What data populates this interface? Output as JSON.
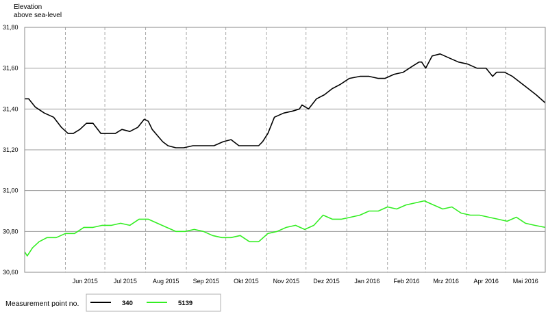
{
  "chart_data": {
    "type": "line",
    "ylabel_lines": [
      "Elevation",
      "above sea-level"
    ],
    "y_ticks": [
      "31,80",
      "31,60",
      "31,40",
      "31,20",
      "31,00",
      "30,80",
      "30,60"
    ],
    "y_tick_values": [
      31.8,
      31.6,
      31.4,
      31.2,
      31.0,
      30.8,
      30.6
    ],
    "ylim": [
      30.6,
      31.8
    ],
    "grid": true,
    "x_start": "2015-05-01",
    "x_end": "2016-05-31",
    "x_month_starts": [
      "2015-05-01",
      "2015-06-01",
      "2015-07-01",
      "2015-08-01",
      "2015-09-01",
      "2015-10-01",
      "2015-11-01",
      "2015-12-01",
      "2016-01-01",
      "2016-02-01",
      "2016-03-01",
      "2016-04-01",
      "2016-05-01"
    ],
    "x_tick_labels": [
      "Jun 2015",
      "Jul 2015",
      "Aug 2015",
      "Sep 2015",
      "Okt 2015",
      "Nov 2015",
      "Dez 2015",
      "Jan 2016",
      "Feb 2016",
      "Mrz 2016",
      "Apr 2016",
      "Mai 2016"
    ],
    "legend": {
      "title": "Measurement point no.",
      "position": "bottom-left"
    },
    "series": [
      {
        "name": "340",
        "color": "#000000",
        "x": [
          "2015-05-01",
          "2015-05-04",
          "2015-05-09",
          "2015-05-16",
          "2015-05-23",
          "2015-05-29",
          "2015-06-03",
          "2015-06-07",
          "2015-06-12",
          "2015-06-17",
          "2015-06-22",
          "2015-06-28",
          "2015-07-04",
          "2015-07-09",
          "2015-07-14",
          "2015-07-20",
          "2015-07-26",
          "2015-07-31",
          "2015-08-03",
          "2015-08-06",
          "2015-08-10",
          "2015-08-14",
          "2015-08-18",
          "2015-08-24",
          "2015-08-30",
          "2015-09-06",
          "2015-09-14",
          "2015-09-22",
          "2015-09-29",
          "2015-10-05",
          "2015-10-11",
          "2015-10-18",
          "2015-10-22",
          "2015-10-26",
          "2015-10-29",
          "2015-11-02",
          "2015-11-07",
          "2015-11-14",
          "2015-11-21",
          "2015-11-26",
          "2015-11-28",
          "2015-12-03",
          "2015-12-09",
          "2015-12-15",
          "2015-12-21",
          "2015-12-27",
          "2016-01-03",
          "2016-01-11",
          "2016-01-18",
          "2016-01-25",
          "2016-01-30",
          "2016-02-06",
          "2016-02-13",
          "2016-02-20",
          "2016-02-25",
          "2016-02-27",
          "2016-03-01",
          "2016-03-06",
          "2016-03-12",
          "2016-03-19",
          "2016-03-26",
          "2016-04-02",
          "2016-04-09",
          "2016-04-16",
          "2016-04-21",
          "2016-04-24",
          "2016-04-30",
          "2016-05-06",
          "2016-05-12",
          "2016-05-18",
          "2016-05-24",
          "2016-05-31"
        ],
        "y": [
          31.45,
          31.45,
          31.41,
          31.38,
          31.36,
          31.31,
          31.28,
          31.28,
          31.3,
          31.33,
          31.33,
          31.28,
          31.28,
          31.28,
          31.3,
          31.29,
          31.31,
          31.35,
          31.34,
          31.3,
          31.27,
          31.24,
          31.22,
          31.21,
          31.21,
          31.22,
          31.22,
          31.22,
          31.24,
          31.25,
          31.22,
          31.22,
          31.22,
          31.22,
          31.24,
          31.28,
          31.36,
          31.38,
          31.39,
          31.4,
          31.42,
          31.4,
          31.45,
          31.47,
          31.5,
          31.52,
          31.55,
          31.56,
          31.56,
          31.55,
          31.55,
          31.57,
          31.58,
          31.61,
          31.63,
          31.63,
          31.6,
          31.66,
          31.67,
          31.65,
          31.63,
          31.62,
          31.6,
          31.6,
          31.56,
          31.58,
          31.58,
          31.56,
          31.53,
          31.5,
          31.47,
          31.43
        ]
      },
      {
        "name": "5139",
        "color": "#33ee22",
        "x": [
          "2015-05-01",
          "2015-05-03",
          "2015-05-07",
          "2015-05-12",
          "2015-05-18",
          "2015-05-25",
          "2015-06-01",
          "2015-06-08",
          "2015-06-15",
          "2015-06-22",
          "2015-06-29",
          "2015-07-06",
          "2015-07-13",
          "2015-07-20",
          "2015-07-27",
          "2015-08-03",
          "2015-08-10",
          "2015-08-17",
          "2015-08-24",
          "2015-08-31",
          "2015-09-07",
          "2015-09-14",
          "2015-09-21",
          "2015-09-28",
          "2015-10-05",
          "2015-10-12",
          "2015-10-19",
          "2015-10-26",
          "2015-11-02",
          "2015-11-09",
          "2015-11-16",
          "2015-11-23",
          "2015-11-30",
          "2015-12-07",
          "2015-12-14",
          "2015-12-21",
          "2015-12-28",
          "2016-01-04",
          "2016-01-11",
          "2016-01-18",
          "2016-01-25",
          "2016-02-01",
          "2016-02-08",
          "2016-02-15",
          "2016-02-22",
          "2016-02-29",
          "2016-03-07",
          "2016-03-14",
          "2016-03-21",
          "2016-03-28",
          "2016-04-04",
          "2016-04-11",
          "2016-04-18",
          "2016-04-25",
          "2016-05-02",
          "2016-05-09",
          "2016-05-16",
          "2016-05-23",
          "2016-05-31"
        ],
        "y": [
          30.7,
          30.68,
          30.72,
          30.75,
          30.77,
          30.77,
          30.79,
          30.79,
          30.82,
          30.82,
          30.83,
          30.83,
          30.84,
          30.83,
          30.86,
          30.86,
          30.84,
          30.82,
          30.8,
          30.8,
          30.81,
          30.8,
          30.78,
          30.77,
          30.77,
          30.78,
          30.75,
          30.75,
          30.79,
          30.8,
          30.82,
          30.83,
          30.81,
          30.83,
          30.88,
          30.86,
          30.86,
          30.87,
          30.88,
          30.9,
          30.9,
          30.92,
          30.91,
          30.93,
          30.94,
          30.95,
          30.93,
          30.91,
          30.92,
          30.89,
          30.88,
          30.88,
          30.87,
          30.86,
          30.85,
          30.87,
          30.84,
          30.83,
          30.82
        ]
      }
    ]
  }
}
